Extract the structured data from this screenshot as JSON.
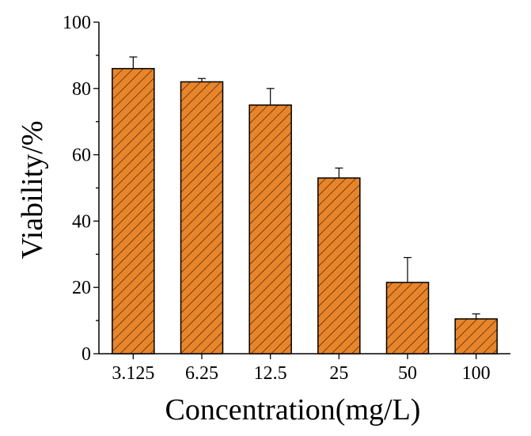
{
  "chart_data": {
    "type": "bar",
    "title": "",
    "xlabel": "Concentration(mg/L)",
    "ylabel": "Viability/%",
    "categories": [
      "3.125",
      "6.25",
      "12.5",
      "25",
      "50",
      "100"
    ],
    "values": [
      86,
      82,
      75,
      53,
      21.5,
      10.5
    ],
    "errors": [
      3.5,
      1,
      5,
      3,
      7.5,
      1.5
    ],
    "ylim": [
      0,
      100
    ],
    "yticks": [
      0,
      20,
      40,
      60,
      80,
      100
    ],
    "grid": false,
    "legend": "none",
    "bar_color": "#e8852b",
    "hatch": "diagonal",
    "edge_color": "#000000"
  }
}
